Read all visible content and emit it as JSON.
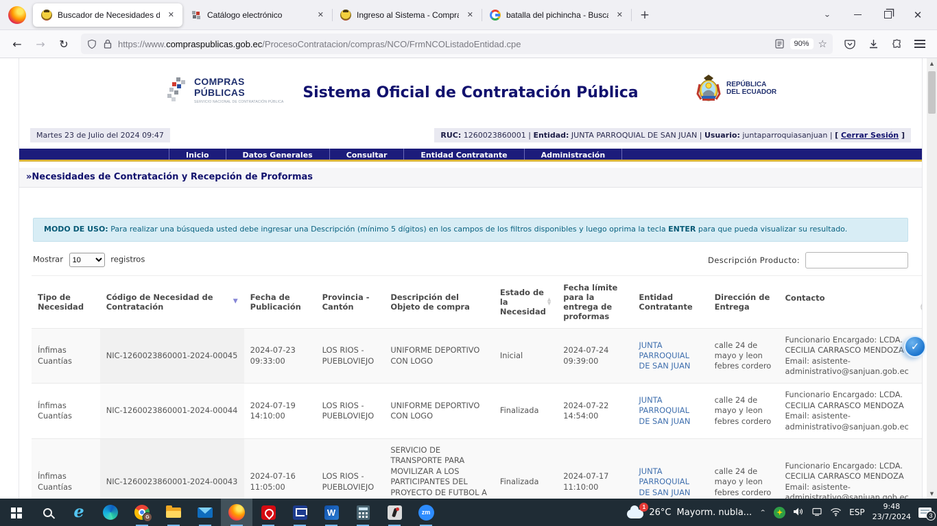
{
  "browser": {
    "tabs": [
      {
        "title": "Buscador de Necesidades de Co",
        "favicon": "ecuador-emblem",
        "active": true
      },
      {
        "title": "Catálogo electrónico",
        "favicon": "compras-publicas",
        "active": false
      },
      {
        "title": "Ingreso al Sistema - Compras P",
        "favicon": "ecuador-emblem",
        "active": false
      },
      {
        "title": "batalla del pichincha - Buscar c",
        "favicon": "google",
        "active": false
      }
    ],
    "new_tab_label": "+",
    "close_glyph": "✕",
    "url_scheme": "https://www.",
    "url_domain": "compraspublicas.gob.ec",
    "url_path": "/ProcesoContratacion/compras/NCO/FrmNCOListadoEntidad.cpe",
    "zoom_level": "90%"
  },
  "page": {
    "header": {
      "logo_line1": "COMPRAS",
      "logo_line2": "PÚBLICAS",
      "logo_tagline": "SERVICIO NACIONAL DE CONTRATACIÓN PÚBLICA",
      "title": "Sistema Oficial de Contratación Pública",
      "republic_line1": "REPÚBLICA",
      "republic_line2": "DEL ECUADOR"
    },
    "session": {
      "datetime": "Martes 23 de Julio del 2024 09:47",
      "ruc_label": "RUC:",
      "ruc": "1260023860001",
      "entity_label": "Entidad:",
      "entity": "JUNTA PARROQUIAL DE SAN JUAN",
      "user_label": "Usuario:",
      "user": "juntaparroquiasanjuan",
      "separator": "|",
      "logout_prefix": "[ ",
      "logout_label": "Cerrar Sesión",
      "logout_suffix": " ]"
    },
    "nav_items": [
      "Inicio",
      "Datos Generales",
      "Consultar",
      "Entidad Contratante",
      "Administración"
    ],
    "heading": "»Necesidades de Contratación y Recepción de Proformas",
    "usage_note": {
      "label": "MODO DE USO:",
      "text_before": " Para realizar una búsqueda usted debe ingresar una Descripción (mínimo 5 dígitos) en los campos de los filtros disponibles y luego oprima la tecla ",
      "enter_word": "ENTER",
      "text_after": " para que pueda visualizar su resultado."
    },
    "filters": {
      "show_label": "Mostrar",
      "page_size": "10",
      "records_label": "registros",
      "search_label": "Descripción Producto:",
      "search_value": ""
    },
    "table": {
      "columns": [
        {
          "label": "Tipo de Necesidad",
          "sort": "none"
        },
        {
          "label": "Código de Necesidad de Contratación",
          "sort": "desc"
        },
        {
          "label": "Fecha de Publicación",
          "sort": "none"
        },
        {
          "label": "Provincia - Cantón",
          "sort": "none"
        },
        {
          "label": "Descripción del Objeto de compra",
          "sort": "none"
        },
        {
          "label": "Estado de la Necesidad",
          "sort": "both"
        },
        {
          "label": "Fecha límite para la entrega de proformas",
          "sort": "none"
        },
        {
          "label": "Entidad Contratante",
          "sort": "none"
        },
        {
          "label": "Dirección de Entrega",
          "sort": "none"
        },
        {
          "label": "Contacto",
          "sort": "both"
        }
      ],
      "rows": [
        {
          "tipo": "Ínfimas Cuantías",
          "codigo": "NIC-1260023860001-2024-00045",
          "fecha_publicacion": "2024-07-23 09:33:00",
          "provincia": "LOS RIOS - PUEBLOVIEJO",
          "descripcion": "UNIFORME DEPORTIVO CON LOGO",
          "estado": "Inicial",
          "fecha_limite": "2024-07-24 09:39:00",
          "entidad": "JUNTA PARROQUIAL DE SAN JUAN",
          "direccion": "calle 24 de mayo y leon febres cordero",
          "contacto": "Funcionario Encargado: LCDA. CECILIA CARRASCO MENDOZA Email: asistente-administrativo@sanjuan.gob.ec"
        },
        {
          "tipo": "Ínfimas Cuantías",
          "codigo": "NIC-1260023860001-2024-00044",
          "fecha_publicacion": "2024-07-19 14:10:00",
          "provincia": "LOS RIOS - PUEBLOVIEJO",
          "descripcion": "UNIFORME DEPORTIVO CON LOGO",
          "estado": "Finalizada",
          "fecha_limite": "2024-07-22 14:54:00",
          "entidad": "JUNTA PARROQUIAL DE SAN JUAN",
          "direccion": "calle 24 de mayo y leon febres cordero",
          "contacto": "Funcionario Encargado: LCDA. CECILIA CARRASCO MENDOZA Email: asistente-administrativo@sanjuan.gob.ec"
        },
        {
          "tipo": "Ínfimas Cuantías",
          "codigo": "NIC-1260023860001-2024-00043",
          "fecha_publicacion": "2024-07-16 11:05:00",
          "provincia": "LOS RIOS - PUEBLOVIEJO",
          "descripcion": "SERVICIO DE TRANSPORTE PARA MOVILIZAR A LOS PARTICIPANTES DEL PROYECTO DE FUTBOL A LA CIUDAD DE GUARANDA",
          "estado": "Finalizada",
          "fecha_limite": "2024-07-17 11:10:00",
          "entidad": "JUNTA PARROQUIAL DE SAN JUAN",
          "direccion": "calle 24 de mayo y leon febres cordero",
          "contacto": "Funcionario Encargado: LCDA. CECILIA CARRASCO MENDOZA Email: asistente-administrativo@sanjuan.gob.ec"
        }
      ]
    }
  },
  "taskbar": {
    "apps": [
      {
        "name": "start",
        "running": false,
        "active": false
      },
      {
        "name": "search",
        "running": false,
        "active": false
      },
      {
        "name": "internet-explorer",
        "running": false,
        "active": false
      },
      {
        "name": "edge",
        "running": false,
        "active": false
      },
      {
        "name": "chrome",
        "running": true,
        "active": false
      },
      {
        "name": "file-explorer",
        "running": true,
        "active": false
      },
      {
        "name": "mail",
        "running": true,
        "active": false
      },
      {
        "name": "firefox",
        "running": true,
        "active": true
      },
      {
        "name": "acrobat",
        "running": true,
        "active": false
      },
      {
        "name": "scanner-app",
        "running": true,
        "active": false
      },
      {
        "name": "word",
        "running": true,
        "active": false
      },
      {
        "name": "calculator",
        "running": true,
        "active": false
      },
      {
        "name": "java-app",
        "running": true,
        "active": false
      },
      {
        "name": "zoom-app",
        "running": true,
        "active": false
      }
    ],
    "weather_badge": "1",
    "temperature": "26°C",
    "condition": "Mayorm. nubla...",
    "language": "ESP",
    "time": "9:48",
    "date": "23/7/2024",
    "notification_badge": "3"
  }
}
